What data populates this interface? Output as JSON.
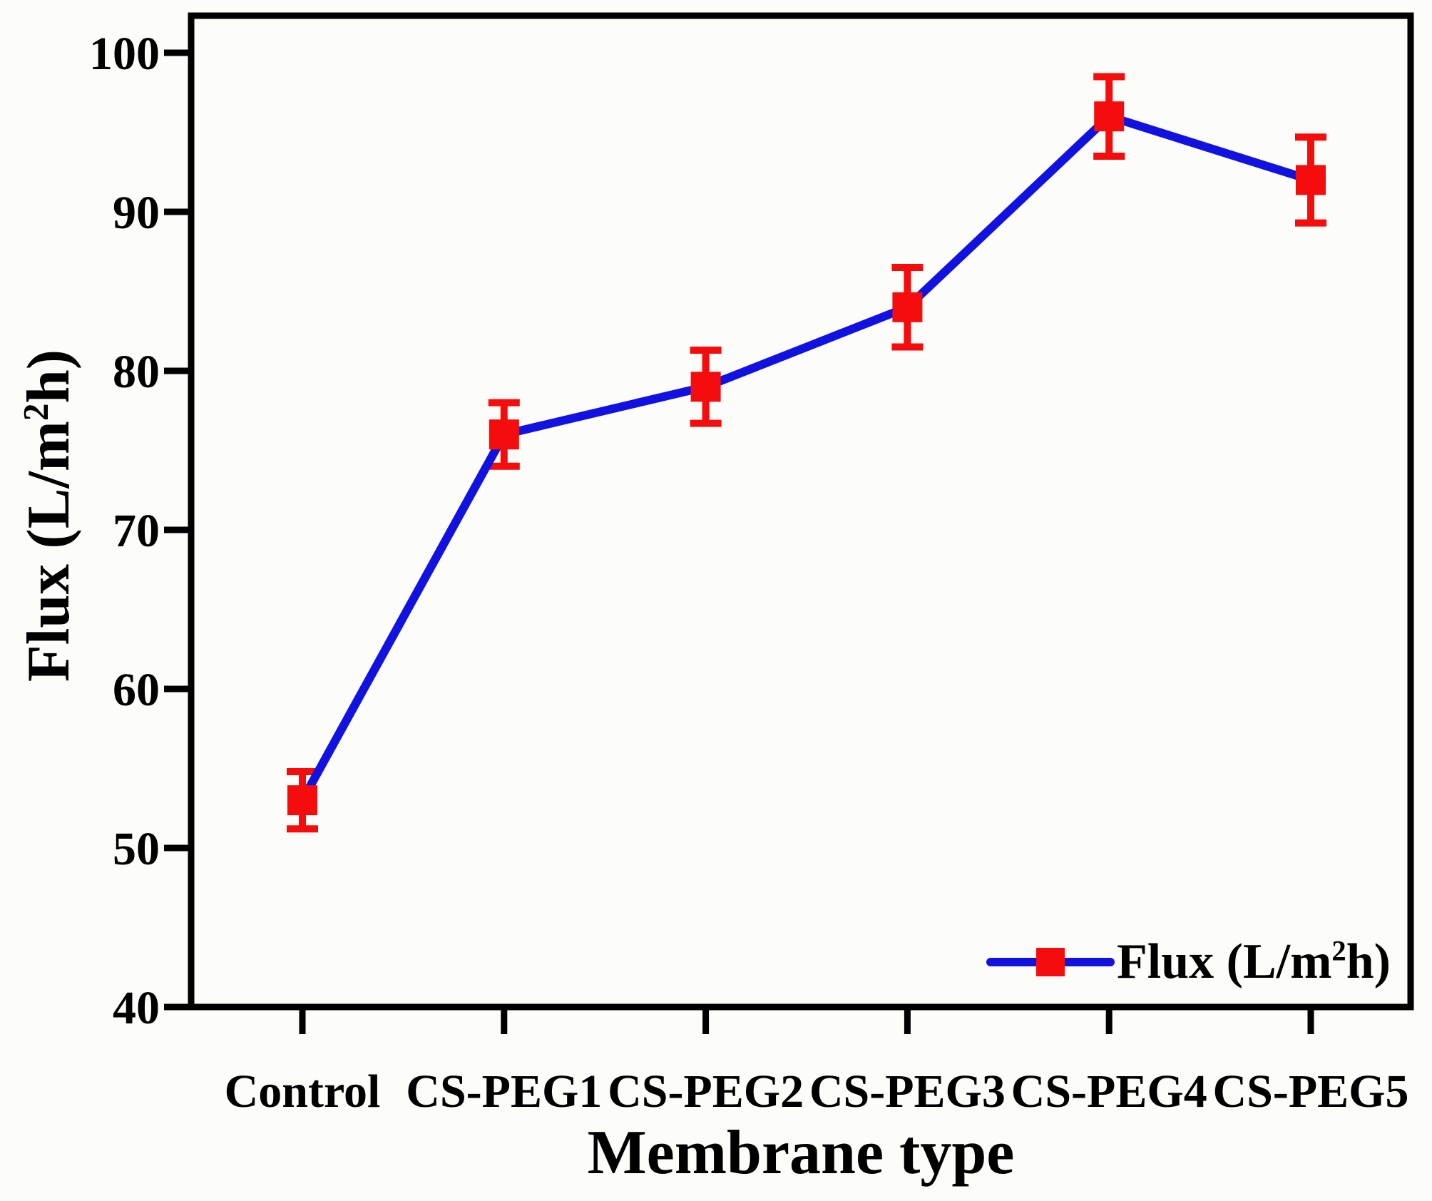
{
  "chart_data": {
    "type": "line",
    "title": "",
    "xlabel": "Membrane type",
    "ylabel": "Flux (L/m2h)",
    "ylabel_parts": {
      "pre": "Flux (L/m",
      "sup": "2",
      "post": "h)"
    },
    "categories": [
      "Control",
      "CS-PEG1",
      "CS-PEG2",
      "CS-PEG3",
      "CS-PEG4",
      "CS-PEG5"
    ],
    "series": [
      {
        "name": "Flux (L/m2h)",
        "name_parts": {
          "pre": "Flux (L/m",
          "sup": "2",
          "post": "h)"
        },
        "values": [
          53,
          76,
          79,
          84,
          96,
          92
        ],
        "errors": [
          1.8,
          2.0,
          2.3,
          2.5,
          2.5,
          2.7
        ],
        "marker": "square"
      }
    ],
    "ylim": [
      40,
      100
    ],
    "yticks": [
      40,
      50,
      60,
      70,
      80,
      90,
      100
    ],
    "grid": false,
    "legend_position": "bottom-right",
    "colors": {
      "line": "#1212e0",
      "marker": "#f50d0d",
      "error_bar": "#f50d0d",
      "axis": "#000000",
      "background": "#fcfcf9"
    }
  }
}
